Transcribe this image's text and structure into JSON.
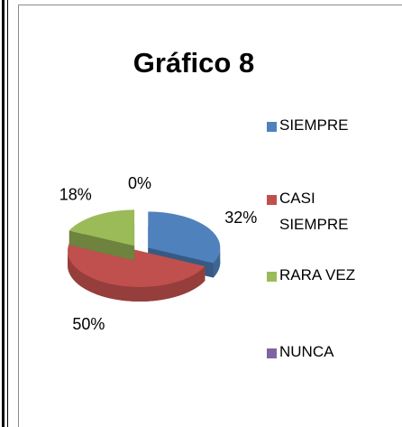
{
  "chart_data": {
    "type": "pie",
    "title": "Gráfico 8",
    "categories": [
      "SIEMPRE",
      "CASI SIEMPRE",
      "RARA VEZ",
      "NUNCA"
    ],
    "values": [
      32,
      50,
      18,
      0
    ],
    "value_labels": [
      "32%",
      "50%",
      "18%",
      "0%"
    ],
    "colors": [
      "#4f81bd",
      "#c0504d",
      "#9bbb59",
      "#8064a2"
    ],
    "legend": "right"
  }
}
